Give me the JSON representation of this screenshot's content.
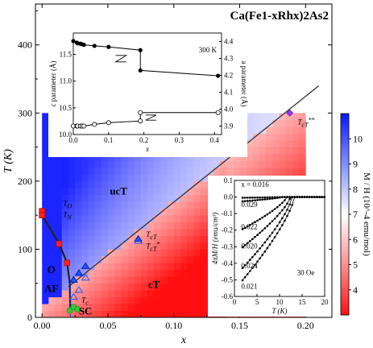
{
  "chart_data": {
    "type": "heatmap",
    "title": "Ca(Fe1-xRhx)2As2",
    "xlabel": "x",
    "ylabel": "T (K)",
    "xlim": [
      -0.005,
      0.22
    ],
    "ylim": [
      0,
      460
    ],
    "xticks": [
      "0.00",
      "0.05",
      "0.10",
      "0.15",
      "0.20"
    ],
    "yticks": [
      "0",
      "100",
      "200",
      "300",
      "400"
    ],
    "colorbar": {
      "label": "M / H (10^-4 emu/mol)",
      "range": [
        3,
        11
      ],
      "ticks": [
        "4",
        "5",
        "6",
        "7",
        "8",
        "9",
        "10"
      ],
      "low_color": "#ff2020",
      "mid_color": "#ffffff",
      "high_color": "#1020ff"
    },
    "phases": [
      {
        "label": "ucT",
        "x": 0.058,
        "T": 185
      },
      {
        "label": "cT",
        "x": 0.085,
        "T": 48
      },
      {
        "label": "O",
        "x": 0.007,
        "T": 70
      },
      {
        "label": "AF",
        "x": 0.007,
        "T": 42
      },
      {
        "label": "SC",
        "x": 0.033,
        "T": 9
      }
    ],
    "TO_TN": [
      {
        "x": 0.0,
        "T": 156
      },
      {
        "x": 0.0,
        "T": 150
      },
      {
        "x": 0.013,
        "T": 108
      },
      {
        "x": 0.019,
        "T": 80
      },
      {
        "x": 0.021,
        "T": 52
      },
      {
        "x": 0.0215,
        "T": 10
      }
    ],
    "Tc": [
      {
        "x": 0.021,
        "T": 10
      },
      {
        "x": 0.024,
        "T": 15
      },
      {
        "x": 0.027,
        "T": 12
      }
    ],
    "TcT_cool": [
      {
        "x": 0.024,
        "T": 55
      },
      {
        "x": 0.028,
        "T": 65
      },
      {
        "x": 0.033,
        "T": 75
      },
      {
        "x": 0.073,
        "T": 115
      }
    ],
    "TcT_warm": [
      {
        "x": 0.024,
        "T": 30
      },
      {
        "x": 0.028,
        "T": 40
      },
      {
        "x": 0.033,
        "T": 58
      },
      {
        "x": 0.073,
        "T": 112
      }
    ],
    "TcT_line": [
      {
        "x": 0.02,
        "T": 45
      },
      {
        "x": 0.21,
        "T": 340
      }
    ],
    "TcT_star2": {
      "x": 0.188,
      "T": 300
    },
    "labels": {
      "TO": "TO",
      "TN": "TN",
      "TcT": "TcT",
      "TcT_star": "TcT*",
      "TcT_star2": "TcT**",
      "Tc": "Tc"
    },
    "inset_lattice": {
      "label": "300 K",
      "xlabel": "x",
      "ylabel_left": "c parameter (Å)",
      "ylabel_right": "a parameter (Å)",
      "xticks": [
        "0.0",
        "0.1",
        "0.2",
        "0.3",
        "0.4"
      ],
      "yticks_left": [
        "10.0",
        "10.5",
        "11.0",
        "11.5"
      ],
      "yticks_right": [
        "3.9",
        "4.0",
        "4.1",
        "4.2",
        "4.3",
        "4.4"
      ],
      "xlim": [
        0,
        0.42
      ],
      "c_ylim": [
        10.0,
        11.9
      ],
      "a_ylim": [
        3.85,
        4.45
      ],
      "c_param": [
        {
          "x": 0.0,
          "v": 11.75
        },
        {
          "x": 0.01,
          "v": 11.72
        },
        {
          "x": 0.012,
          "v": 11.71
        },
        {
          "x": 0.02,
          "v": 11.7
        },
        {
          "x": 0.025,
          "v": 11.69
        },
        {
          "x": 0.03,
          "v": 11.68
        },
        {
          "x": 0.06,
          "v": 11.66
        },
        {
          "x": 0.1,
          "v": 11.64
        },
        {
          "x": 0.19,
          "v": 11.58
        },
        {
          "x": 0.19,
          "v": 11.2
        },
        {
          "x": 0.41,
          "v": 11.1
        }
      ],
      "a_param": [
        {
          "x": 0.0,
          "v": 3.9
        },
        {
          "x": 0.01,
          "v": 3.9
        },
        {
          "x": 0.012,
          "v": 3.9
        },
        {
          "x": 0.02,
          "v": 3.9
        },
        {
          "x": 0.025,
          "v": 3.9
        },
        {
          "x": 0.03,
          "v": 3.9
        },
        {
          "x": 0.06,
          "v": 3.91
        },
        {
          "x": 0.1,
          "v": 3.92
        },
        {
          "x": 0.19,
          "v": 3.93
        },
        {
          "x": 0.19,
          "v": 3.98
        },
        {
          "x": 0.41,
          "v": 3.98
        }
      ]
    },
    "inset_mag": {
      "xlabel": "T (K)",
      "ylabel": "4πM/H (emu/cm³)",
      "field": "30 Oe",
      "xlim": [
        0,
        20
      ],
      "ylim": [
        -0.6,
        0.1
      ],
      "xticks": [
        "0",
        "5",
        "10",
        "15",
        "20"
      ],
      "yticks": [
        "0.1",
        "0.0",
        "-0.1",
        "-0.2",
        "-0.3",
        "-0.4",
        "-0.5",
        "-0.6"
      ],
      "series": [
        {
          "name": "x = 0.016",
          "Tc": 10.8,
          "M0": -0.005
        },
        {
          "name": "0.029",
          "Tc": 10.6,
          "M0": -0.03
        },
        {
          "name": "0.022",
          "Tc": 11.6,
          "M0": -0.22
        },
        {
          "name": "0.020",
          "Tc": 12.4,
          "M0": -0.34
        },
        {
          "name": "0.024",
          "Tc": 12.8,
          "M0": -0.48
        },
        {
          "name": "0.021",
          "Tc": 13.3,
          "M0": -0.56
        }
      ]
    }
  }
}
